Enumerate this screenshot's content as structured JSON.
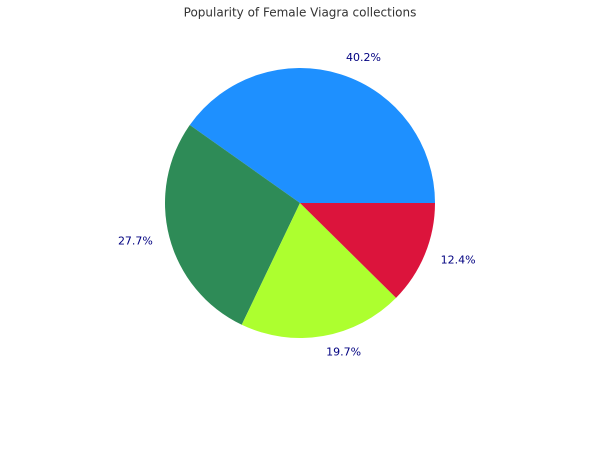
{
  "chart_data": {
    "type": "pie",
    "title": "Popularity of Female Viagra collections",
    "values": [
      40.2,
      27.7,
      19.7,
      12.4
    ],
    "value_labels": [
      "40.2%",
      "27.7%",
      "19.7%",
      "12.4%"
    ],
    "colors": [
      "#1e90ff",
      "#2e8b57",
      "#adff2f",
      "#dc143c"
    ]
  }
}
